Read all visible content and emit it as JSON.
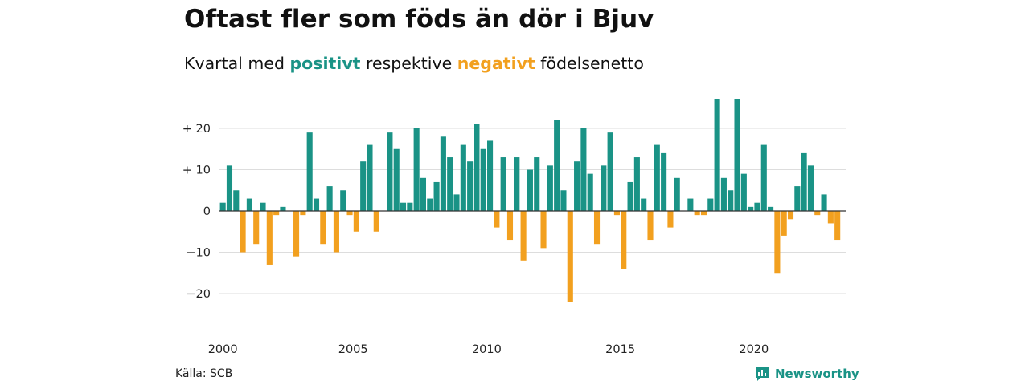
{
  "title": "Oftast fler som föds än dör i Bjuv",
  "subtitle": {
    "prefix": "Kvartal med ",
    "positive_word": "positivt",
    "middle": " respektive ",
    "negative_word": "negativt",
    "suffix": " födelsenetto"
  },
  "source": "Källa: SCB",
  "brand": {
    "name": "Newsworthy",
    "icon": "newsworthy-logo-icon"
  },
  "colors": {
    "positive": "#1a9386",
    "negative": "#f2a01f",
    "grid": "#dddddd",
    "zero_line": "#333333"
  },
  "chart_data": {
    "type": "bar",
    "title": "Oftast fler som föds än dör i Bjuv",
    "subtitle": "Kvartal med positivt respektive negativt födelsenetto",
    "xlabel": "",
    "ylabel": "",
    "ylim": [
      -27,
      27
    ],
    "yticks": [
      20,
      10,
      0,
      -10,
      -20
    ],
    "ytick_labels": [
      "+ 20",
      "+ 10",
      "0",
      "−10",
      "−20"
    ],
    "xticks": [
      "2000",
      "2005",
      "2010",
      "2015",
      "2020"
    ],
    "grid": true,
    "start": "2000 Q1",
    "frequency": "quarter",
    "values": [
      2,
      11,
      5,
      -10,
      3,
      -8,
      2,
      -13,
      -1,
      1,
      0,
      -11,
      -1,
      19,
      3,
      -8,
      6,
      -10,
      5,
      -1,
      -5,
      12,
      16,
      -5,
      0,
      19,
      15,
      2,
      2,
      20,
      8,
      3,
      7,
      18,
      13,
      4,
      16,
      12,
      21,
      15,
      17,
      -4,
      13,
      -7,
      13,
      -12,
      10,
      13,
      -9,
      11,
      22,
      5,
      -22,
      12,
      20,
      9,
      -8,
      11,
      19,
      -1,
      -14,
      7,
      13,
      3,
      -7,
      16,
      14,
      -4,
      8,
      0,
      3,
      -1,
      -1,
      3,
      27,
      8,
      5,
      27,
      9,
      1,
      2,
      16,
      1,
      -15,
      -6,
      -2,
      6,
      14,
      11,
      -1,
      4,
      -3,
      -7
    ]
  }
}
